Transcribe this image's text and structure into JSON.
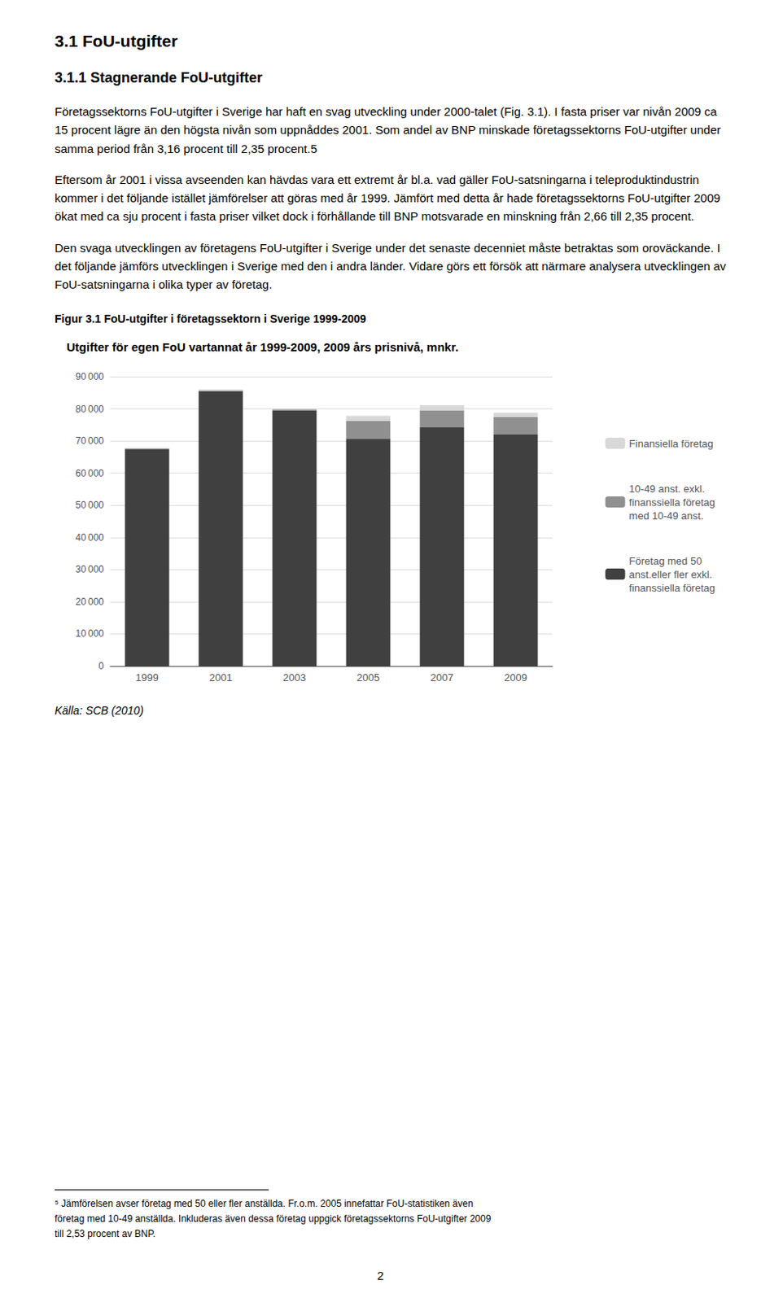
{
  "heading1": "3.1   FoU-utgifter",
  "heading2": "3.1.1   Stagnerande FoU-utgifter",
  "paragraphs": [
    "Företagssektorns FoU-utgifter i Sverige har haft en svag utveckling under 2000-talet (Fig. 3.1). I fasta priser var nivån 2009 ca 15 procent lägre än den högsta nivån som uppnåddes 2001. Som andel av BNP minskade företagssektorns FoU-utgifter under samma period från 3,16 procent till 2,35 procent.5",
    "Eftersom år 2001 i vissa avseenden kan hävdas vara ett extremt år bl.a. vad gäller FoU-satsningarna i teleproduktindustrin kommer i det följande istället jämförelser att göras med år 1999. Jämfört med detta år hade företagssektorns FoU-utgifter 2009 ökat med ca sju procent i fasta priser vilket dock i förhållande till BNP motsvarade en minskning från 2,66 till 2,35 procent.",
    "Den svaga utvecklingen av företagens FoU-utgifter i Sverige under det senaste decenniet måste betraktas som oroväckande. I det följande jämförs utvecklingen i Sverige med den i andra länder. Vidare görs ett försök att närmare analysera utvecklingen av FoU-satsningarna i olika typer av företag."
  ],
  "figure_caption": "Figur 3.1 FoU-utgifter i företagssektorn i Sverige 1999-2009",
  "source": "Källa: SCB (2010)",
  "footnote": [
    "⁵ Jämförelsen avser företag med 50 eller fler anställda. Fr.o.m. 2005 innefattar FoU-statistiken även",
    "företag med 10-49 anställda. Inkluderas även dessa företag uppgick företagssektorns FoU-utgifter 2009",
    "till 2,53 procent av BNP."
  ],
  "page_number": "2",
  "chart_data": {
    "type": "bar",
    "title": "Utgifter för egen FoU vartannat år 1999-2009, 2009 års prisnivå, mnkr.",
    "categories": [
      "1999",
      "2001",
      "2003",
      "2005",
      "2007",
      "2009"
    ],
    "series": [
      {
        "name": "Företag med 50\nanst.eller fler exkl.\nfinanssiella företag",
        "color": "#404040",
        "values": [
          67500,
          85500,
          79500,
          70700,
          74200,
          72000
        ]
      },
      {
        "name": "10-49 anst. exkl.\nfinanssiella företag\nmed 10-49 anst.",
        "color": "#909090",
        "values": [
          200,
          200,
          300,
          5500,
          5300,
          5500
        ]
      },
      {
        "name": "Finansiella företag",
        "color": "#d8d8d8",
        "values": [
          100,
          300,
          200,
          1600,
          1600,
          1300
        ]
      }
    ],
    "stacked": true,
    "ylim": [
      0,
      90000
    ],
    "yticks": [
      0,
      {
        "value": 10000,
        "label": "10 000"
      },
      {
        "value": 20000,
        "label": "20 000"
      },
      {
        "value": 30000,
        "label": "30 000"
      },
      {
        "value": 40000,
        "label": "40 000"
      },
      {
        "value": 50000,
        "label": "50 000"
      },
      {
        "value": 60000,
        "label": "60 000"
      },
      {
        "value": 70000,
        "label": "70 000"
      },
      {
        "value": 80000,
        "label": "80 000"
      },
      {
        "value": 90000,
        "label": "90 000"
      }
    ],
    "grid": true,
    "legend": "right"
  }
}
